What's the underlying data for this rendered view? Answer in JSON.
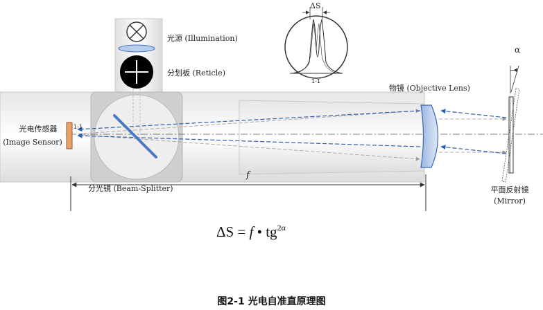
{
  "labels": {
    "illumination": "光源 (Illumination)",
    "reticle": "分划板 (Reticle)",
    "objective": "物镜 (Objective Lens)",
    "sensor_cn": "光电传感器",
    "sensor_en": "(Image Sensor)",
    "splitter": "分光镜 (Beam-Splitter)",
    "mirror_cn": "平面反射镜",
    "mirror_en": "(Mirror)",
    "focal": "f",
    "alpha": "α",
    "delta_s": "ΔS",
    "sensor_mark": "1-1",
    "inset_mark": "1-1"
  },
  "formula": {
    "lhs": "ΔS = ",
    "f": "f",
    "mid": " • tg",
    "exp": "2α"
  },
  "caption": "图2-1   光电自准直原理图"
}
